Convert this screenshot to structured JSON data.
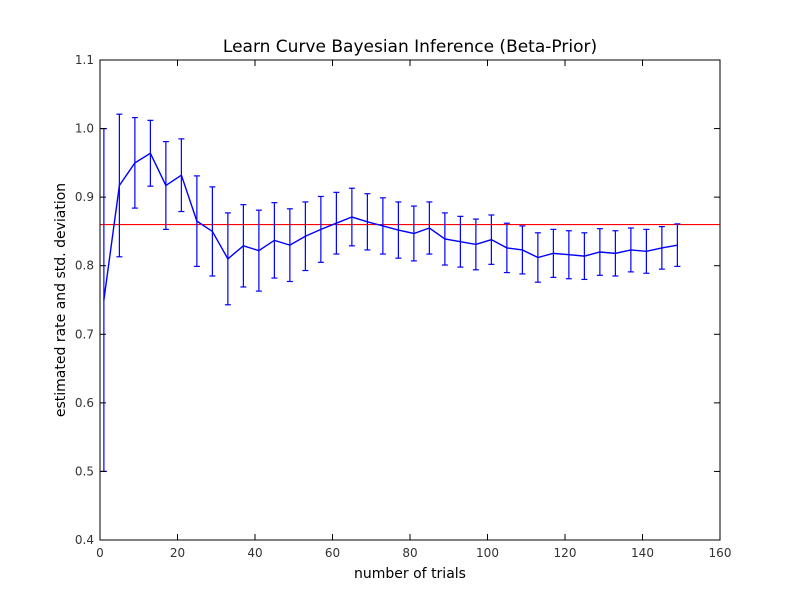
{
  "chart_data": {
    "type": "line",
    "title": "Learn Curve Bayesian Inference (Beta-Prior)",
    "xlabel": "number of trials",
    "ylabel": "estimated rate and std. deviation",
    "xlim": [
      0,
      160
    ],
    "ylim": [
      0.4,
      1.1
    ],
    "xticks": [
      0,
      20,
      40,
      60,
      80,
      100,
      120,
      140,
      160
    ],
    "yticks": [
      0.4,
      0.5,
      0.6,
      0.7,
      0.8,
      0.9,
      1.0,
      1.1
    ],
    "xtick_labels": [
      "0",
      "20",
      "40",
      "60",
      "80",
      "100",
      "120",
      "140",
      "160"
    ],
    "ytick_labels": [
      "0.4",
      "0.5",
      "0.6",
      "0.7",
      "0.8",
      "0.9",
      "1.0",
      "1.1"
    ],
    "grid": false,
    "series": [
      {
        "color": "#0000ff",
        "x": [
          1,
          5,
          9,
          13,
          17,
          21,
          25,
          29,
          33,
          37,
          41,
          45,
          49,
          53,
          57,
          61,
          65,
          69,
          73,
          77,
          81,
          85,
          89,
          93,
          97,
          101,
          105,
          109,
          113,
          117,
          121,
          125,
          129,
          133,
          137,
          141,
          145,
          149
        ],
        "y": [
          0.75,
          0.917,
          0.95,
          0.964,
          0.917,
          0.932,
          0.865,
          0.85,
          0.81,
          0.829,
          0.822,
          0.837,
          0.83,
          0.843,
          0.853,
          0.862,
          0.871,
          0.864,
          0.858,
          0.852,
          0.847,
          0.855,
          0.839,
          0.835,
          0.831,
          0.838,
          0.826,
          0.823,
          0.812,
          0.818,
          0.816,
          0.814,
          0.82,
          0.818,
          0.823,
          0.821,
          0.826,
          0.83
        ],
        "err": [
          0.25,
          0.104,
          0.066,
          0.048,
          0.064,
          0.053,
          0.066,
          0.065,
          0.067,
          0.06,
          0.059,
          0.055,
          0.053,
          0.05,
          0.048,
          0.045,
          0.042,
          0.041,
          0.041,
          0.041,
          0.04,
          0.038,
          0.038,
          0.037,
          0.037,
          0.036,
          0.036,
          0.035,
          0.036,
          0.035,
          0.035,
          0.034,
          0.034,
          0.033,
          0.032,
          0.032,
          0.031,
          0.031
        ]
      }
    ],
    "reference_line": {
      "y": 0.86,
      "color": "#ff0000"
    }
  }
}
